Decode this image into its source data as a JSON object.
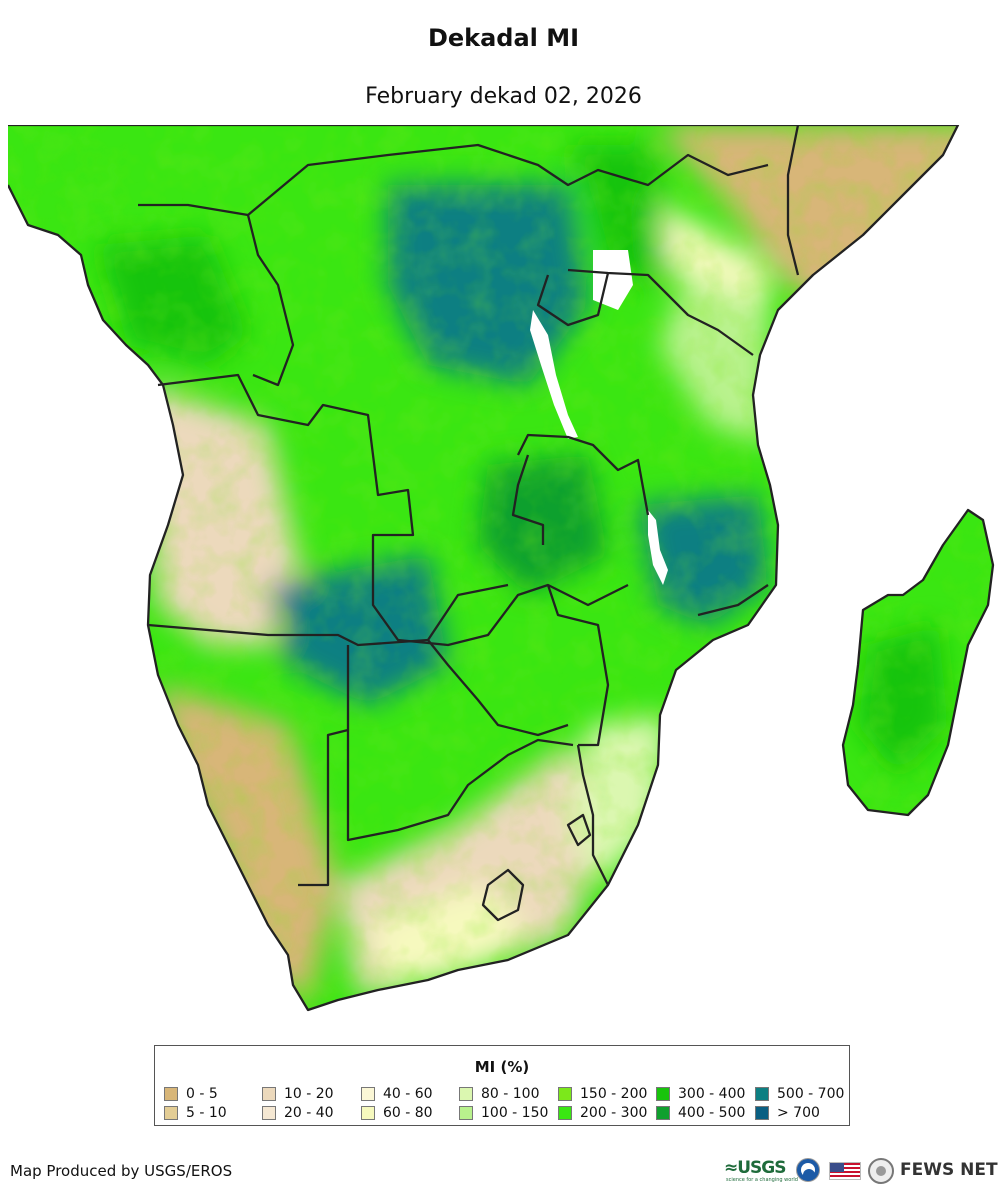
{
  "title": "Dekadal MI",
  "subtitle": "February dekad 02, 2026",
  "legend": {
    "title": "MI (%)",
    "items": [
      {
        "label": "0 - 5",
        "color": "#d8b678"
      },
      {
        "label": "5 - 10",
        "color": "#e3cd95"
      },
      {
        "label": "10 - 20",
        "color": "#ecd9bc"
      },
      {
        "label": "20 - 40",
        "color": "#f5e8d3"
      },
      {
        "label": "40 - 60",
        "color": "#fbf7d6"
      },
      {
        "label": "60 - 80",
        "color": "#f6f9be"
      },
      {
        "label": "80 - 100",
        "color": "#dbf7b0"
      },
      {
        "label": "100 - 150",
        "color": "#b9f28d"
      },
      {
        "label": "150 - 200",
        "color": "#7ce81b"
      },
      {
        "label": "200 - 300",
        "color": "#3ae612"
      },
      {
        "label": "300 - 400",
        "color": "#18c40c"
      },
      {
        "label": "400 - 500",
        "color": "#10a02e"
      },
      {
        "label": "500 - 700",
        "color": "#0d7f82"
      },
      {
        "label": "> 700",
        "color": "#0a5f82"
      }
    ]
  },
  "credit": "Map Produced by USGS/EROS",
  "logos": {
    "usgs": "≈USGS",
    "usgs_tagline": "science for a changing world",
    "fews": "FEWS NET"
  }
}
